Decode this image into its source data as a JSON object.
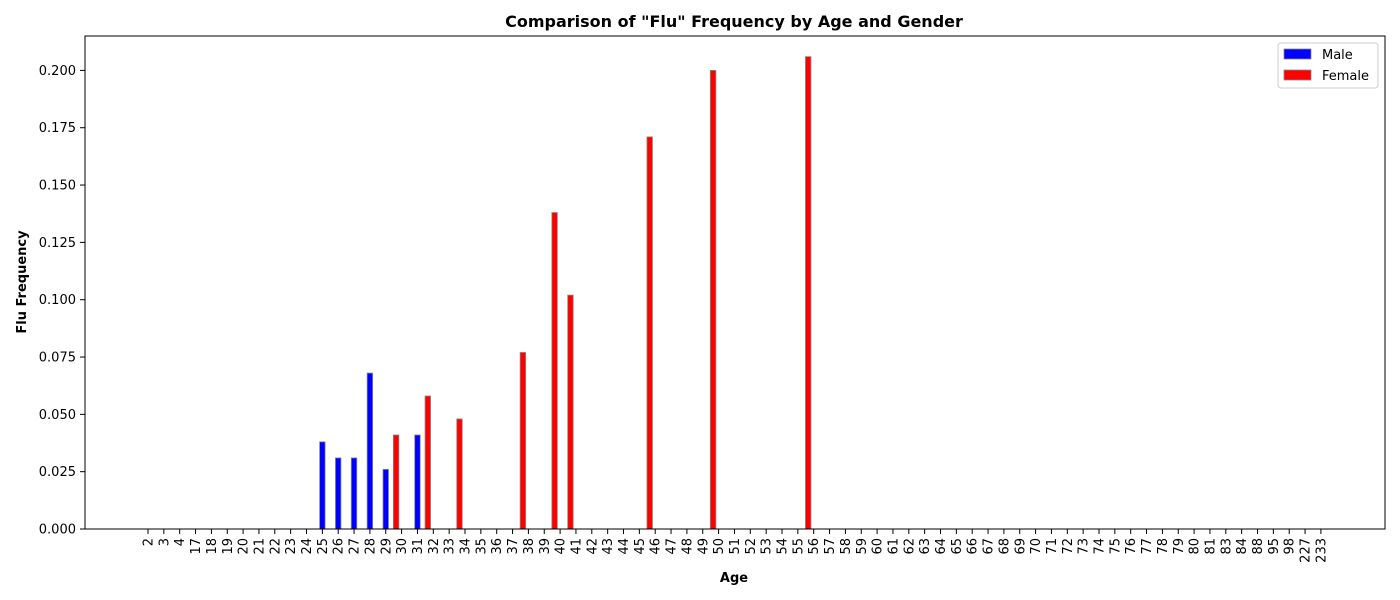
{
  "chart_data": {
    "type": "bar",
    "title": "Comparison of \"Flu\" Frequency by Age and Gender",
    "xlabel": "Age",
    "ylabel": "Flu Frequency",
    "ylim": [
      0,
      0.215
    ],
    "yticks": [
      "0.000",
      "0.025",
      "0.050",
      "0.075",
      "0.100",
      "0.125",
      "0.150",
      "0.175",
      "0.200"
    ],
    "ytick_values": [
      0,
      0.025,
      0.05,
      0.075,
      0.1,
      0.125,
      0.15,
      0.175,
      0.2
    ],
    "grid": false,
    "legend_position": "top-right",
    "categories": [
      "2",
      "3",
      "4",
      "17",
      "18",
      "19",
      "20",
      "21",
      "22",
      "23",
      "24",
      "25",
      "26",
      "27",
      "28",
      "29",
      "30",
      "31",
      "32",
      "33",
      "34",
      "35",
      "36",
      "37",
      "38",
      "39",
      "40",
      "41",
      "42",
      "43",
      "44",
      "45",
      "46",
      "47",
      "48",
      "49",
      "50",
      "51",
      "52",
      "53",
      "54",
      "55",
      "56",
      "57",
      "58",
      "59",
      "60",
      "61",
      "62",
      "63",
      "64",
      "65",
      "66",
      "67",
      "68",
      "69",
      "70",
      "71",
      "72",
      "73",
      "74",
      "75",
      "76",
      "77",
      "78",
      "79",
      "80",
      "81",
      "83",
      "84",
      "88",
      "95",
      "98",
      "227",
      "233"
    ],
    "series": [
      {
        "name": "Male",
        "color": "#0000ff",
        "values": [
          0,
          0,
          0,
          0,
          0,
          0,
          0,
          0,
          0,
          0,
          0,
          0.038,
          0.031,
          0.031,
          0.068,
          0.026,
          0,
          0.041,
          0,
          0,
          0,
          0,
          0,
          0,
          0,
          0,
          0,
          0,
          0,
          0,
          0,
          0,
          0,
          0,
          0,
          0,
          0,
          0,
          0,
          0,
          0,
          0,
          0,
          0,
          0,
          0,
          0,
          0,
          0,
          0,
          0,
          0,
          0,
          0,
          0,
          0,
          0,
          0,
          0,
          0,
          0,
          0,
          0,
          0,
          0,
          0,
          0,
          0,
          0,
          0,
          0,
          0,
          0,
          0,
          0
        ]
      },
      {
        "name": "Female",
        "color": "#ff0000",
        "values": [
          0,
          0,
          0,
          0,
          0,
          0,
          0,
          0,
          0,
          0,
          0,
          0,
          0,
          0,
          0,
          0,
          0.041,
          0,
          0.058,
          0,
          0.048,
          0,
          0,
          0,
          0.077,
          0,
          0.138,
          0.102,
          0,
          0,
          0,
          0,
          0.171,
          0,
          0,
          0,
          0.2,
          0,
          0,
          0,
          0,
          0,
          0.206,
          0,
          0,
          0,
          0,
          0,
          0,
          0,
          0,
          0,
          0,
          0,
          0,
          0,
          0,
          0,
          0,
          0,
          0,
          0,
          0,
          0,
          0,
          0,
          0,
          0,
          0,
          0,
          0,
          0,
          0,
          0,
          0
        ]
      }
    ]
  }
}
